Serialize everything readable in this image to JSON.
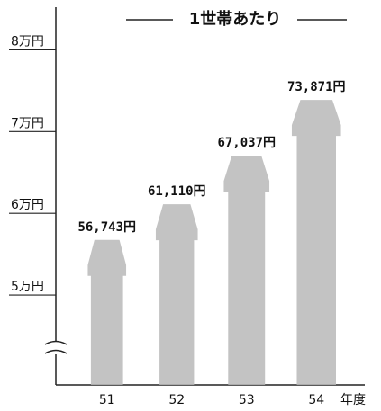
{
  "chart_data": {
    "type": "bar",
    "title": "1世帯あたり",
    "categories": [
      "51",
      "52",
      "53",
      "54"
    ],
    "values": [
      56743,
      61110,
      67037,
      73871
    ],
    "value_labels": [
      "56,743円",
      "61,110円",
      "67,037円",
      "73,871円"
    ],
    "color": "#b8b8b8",
    "x_label": "年度",
    "ylim": [
      39000,
      85000
    ],
    "yticks": [
      {
        "value": 50000,
        "label": "5万円"
      },
      {
        "value": 60000,
        "label": "6万円"
      },
      {
        "value": 70000,
        "label": "7万円"
      },
      {
        "value": 80000,
        "label": "8万円"
      }
    ]
  }
}
